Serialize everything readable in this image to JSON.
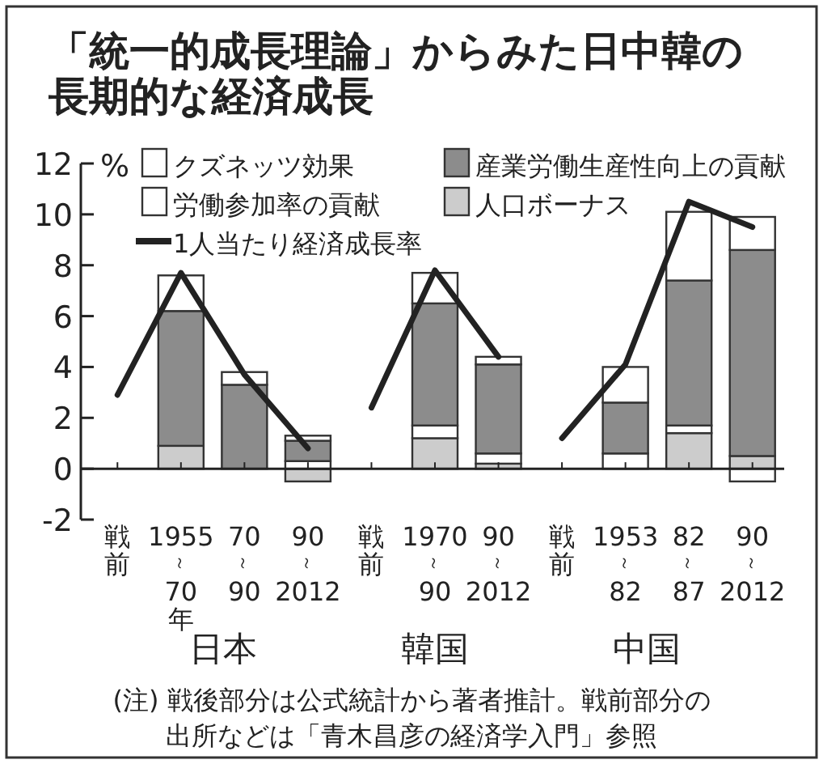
{
  "chart_data": {
    "type": "bar",
    "stacked": true,
    "title": "「統一的成長理論」からみた日中韓の長期的な経済成長",
    "ylabel": "%",
    "categories": [
      "戦前",
      "1955\n～\n70\n年",
      "70\n～\n90",
      "90\n～\n2012",
      "戦前",
      "1970\n～\n90",
      "90\n～\n2012",
      "戦前",
      "1953\n～\n82",
      "82\n～\n87",
      "90\n～\n2012"
    ],
    "series": [
      {
        "name": "人口ボーナス",
        "color": "#cccccc",
        "values": [
          null,
          0.9,
          0,
          -0.5,
          null,
          1.2,
          0.2,
          null,
          0,
          1.4,
          0.5
        ]
      },
      {
        "name": "労働参加率の貢献",
        "color": "#ffffff",
        "values": [
          null,
          0,
          0,
          0.3,
          null,
          0.5,
          0.4,
          null,
          0.6,
          0.3,
          -0.5
        ]
      },
      {
        "name": "産業労働生産性向上の貢献",
        "color": "#8c8c8c",
        "values": [
          null,
          5.3,
          3.3,
          0.8,
          null,
          4.8,
          3.5,
          null,
          2.0,
          5.7,
          8.1
        ]
      },
      {
        "name": "クズネッツ効果",
        "color": "#ffffff",
        "values": [
          null,
          1.4,
          0.5,
          0.2,
          null,
          1.2,
          0.3,
          null,
          1.4,
          2.7,
          1.3
        ]
      },
      {
        "name": "1人当たり経済成長率",
        "type": "line",
        "color": "#222222",
        "values": [
          2.9,
          7.7,
          3.7,
          0.8,
          null,
          null,
          null,
          null,
          null,
          null,
          null
        ]
      },
      {
        "type": "line",
        "color": "#222222",
        "values": [
          null,
          null,
          null,
          null,
          2.4,
          7.8,
          4.4,
          null,
          null,
          null,
          null
        ]
      },
      {
        "type": "line",
        "color": "#222222",
        "values": [
          null,
          null,
          null,
          null,
          null,
          null,
          null,
          1.2,
          4.1,
          10.5,
          9.5
        ]
      }
    ],
    "ylim": [
      -2,
      12
    ],
    "yticks": [
      -2,
      0,
      2,
      4,
      6,
      8,
      10,
      12
    ],
    "legend": "top",
    "marker": "none",
    "line_style": "solid",
    "annotations": [
      "日本",
      "韓国",
      "中国",
      "(注) 戦後部分は公式統計から著者推計。戦前部分の出所などは「青木昌彦の経済学入門」参照"
    ]
  }
}
